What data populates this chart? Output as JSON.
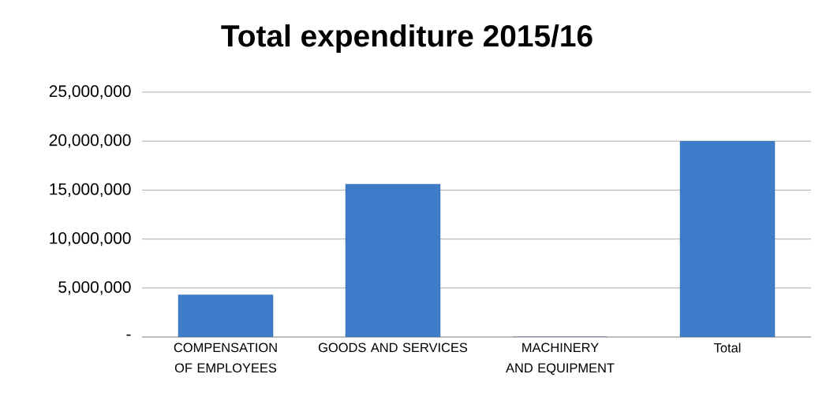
{
  "chart_data": {
    "type": "bar",
    "title": "Total expenditure 2015/16",
    "categories": [
      "COMPENSATION OF EMPLOYEES",
      "GOODS AND SERVICES",
      "MACHINERY AND EQUIPMENT",
      "Total"
    ],
    "values": [
      4300000,
      15600000,
      0,
      20000000
    ],
    "color": "#3d7cc9",
    "ylim": [
      0,
      25000000
    ],
    "yticks": [
      {
        "value": 0,
        "label": "-"
      },
      {
        "value": 5000000,
        "label": "5,000,000"
      },
      {
        "value": 10000000,
        "label": "10,000,000"
      },
      {
        "value": 15000000,
        "label": "15,000,000"
      },
      {
        "value": 20000000,
        "label": "20,000,000"
      },
      {
        "value": 25000000,
        "label": "25,000,000"
      }
    ],
    "grid": "y"
  }
}
